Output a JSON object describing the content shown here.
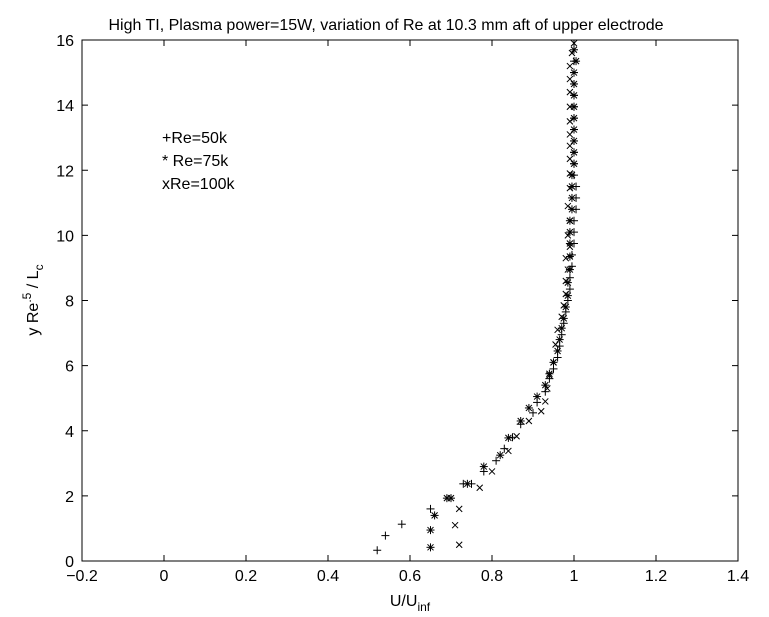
{
  "chart_data": {
    "type": "scatter",
    "title": "High TI, Plasma power=15W, variation of Re at 10.3 mm aft of upper electrode",
    "xlabel": {
      "base": "U/U",
      "sub": "inf"
    },
    "ylabel": {
      "base": "y Re",
      "sup": ".5",
      "mid": " / L",
      "sub": "c"
    },
    "xlim": [
      -0.2,
      1.4
    ],
    "ylim": [
      0,
      16
    ],
    "xticks": [
      "-0.2",
      "0",
      "0.2",
      "0.4",
      "0.6",
      "0.8",
      "1",
      "1.2",
      "1.4"
    ],
    "yticks": [
      "0",
      "2",
      "4",
      "6",
      "8",
      "10",
      "12",
      "14",
      "16"
    ],
    "grid": false,
    "legend_entries": [
      "+Re=50k",
      "* Re=75k",
      "xRe=100k"
    ],
    "series": [
      {
        "marker": "+",
        "points": [
          [
            0.52,
            0.33
          ],
          [
            0.54,
            0.78
          ],
          [
            0.58,
            1.13
          ],
          [
            0.65,
            1.6
          ],
          [
            0.69,
            1.93
          ],
          [
            0.73,
            2.37
          ],
          [
            0.75,
            2.37
          ],
          [
            0.78,
            2.75
          ],
          [
            0.81,
            3.08
          ],
          [
            0.83,
            3.45
          ],
          [
            0.85,
            3.8
          ],
          [
            0.87,
            4.2
          ],
          [
            0.9,
            4.55
          ],
          [
            0.91,
            4.87
          ],
          [
            0.93,
            5.2
          ],
          [
            0.94,
            5.6
          ],
          [
            0.95,
            5.9
          ],
          [
            0.96,
            6.25
          ],
          [
            0.965,
            6.6
          ],
          [
            0.97,
            6.95
          ],
          [
            0.975,
            7.3
          ],
          [
            0.98,
            7.65
          ],
          [
            0.985,
            8.0
          ],
          [
            0.99,
            8.35
          ],
          [
            0.99,
            8.7
          ],
          [
            0.995,
            9.05
          ],
          [
            0.995,
            9.4
          ],
          [
            1.0,
            9.75
          ],
          [
            1.0,
            10.1
          ],
          [
            1.0,
            10.45
          ],
          [
            1.005,
            10.8
          ],
          [
            1.005,
            11.15
          ],
          [
            1.005,
            11.5
          ],
          [
            1.0,
            11.85
          ],
          [
            1.0,
            12.2
          ],
          [
            1.0,
            12.55
          ],
          [
            1.0,
            12.9
          ],
          [
            1.0,
            13.25
          ],
          [
            1.0,
            13.6
          ],
          [
            1.0,
            13.95
          ],
          [
            1.0,
            14.3
          ],
          [
            1.0,
            14.65
          ],
          [
            1.0,
            15.0
          ],
          [
            1.0,
            15.35
          ]
        ]
      },
      {
        "marker": "*",
        "points": [
          [
            0.65,
            0.42
          ],
          [
            0.65,
            0.95
          ],
          [
            0.66,
            1.4
          ],
          [
            0.7,
            1.93
          ],
          [
            0.74,
            2.37
          ],
          [
            0.78,
            2.9
          ],
          [
            0.82,
            3.25
          ],
          [
            0.84,
            3.78
          ],
          [
            0.87,
            4.3
          ],
          [
            0.89,
            4.7
          ],
          [
            0.91,
            5.05
          ],
          [
            0.93,
            5.4
          ],
          [
            0.94,
            5.75
          ],
          [
            0.95,
            6.1
          ],
          [
            0.96,
            6.45
          ],
          [
            0.965,
            6.8
          ],
          [
            0.97,
            7.15
          ],
          [
            0.975,
            7.45
          ],
          [
            0.98,
            7.8
          ],
          [
            0.985,
            8.15
          ],
          [
            0.985,
            8.55
          ],
          [
            0.99,
            8.95
          ],
          [
            0.99,
            9.35
          ],
          [
            0.99,
            9.75
          ],
          [
            0.99,
            10.1
          ],
          [
            0.99,
            10.45
          ],
          [
            0.995,
            10.8
          ],
          [
            0.995,
            11.15
          ],
          [
            0.995,
            11.5
          ],
          [
            0.995,
            11.85
          ],
          [
            1.0,
            12.2
          ],
          [
            1.0,
            12.55
          ],
          [
            1.0,
            12.9
          ],
          [
            1.0,
            13.25
          ],
          [
            1.0,
            13.6
          ],
          [
            1.0,
            13.95
          ],
          [
            1.0,
            14.3
          ],
          [
            1.0,
            14.65
          ],
          [
            1.0,
            15.0
          ],
          [
            1.005,
            15.35
          ],
          [
            1.0,
            15.7
          ]
        ]
      },
      {
        "marker": "x",
        "points": [
          [
            0.72,
            0.5
          ],
          [
            0.71,
            1.1
          ],
          [
            0.72,
            1.6
          ],
          [
            0.69,
            1.93
          ],
          [
            0.77,
            2.25
          ],
          [
            0.8,
            2.75
          ],
          [
            0.84,
            3.38
          ],
          [
            0.86,
            3.83
          ],
          [
            0.89,
            4.3
          ],
          [
            0.92,
            4.6
          ],
          [
            0.93,
            4.9
          ],
          [
            0.935,
            5.3
          ],
          [
            0.94,
            5.7
          ],
          [
            0.95,
            6.1
          ],
          [
            0.955,
            6.65
          ],
          [
            0.96,
            7.1
          ],
          [
            0.97,
            7.5
          ],
          [
            0.975,
            7.85
          ],
          [
            0.98,
            8.2
          ],
          [
            0.98,
            8.6
          ],
          [
            0.985,
            8.95
          ],
          [
            0.98,
            9.3
          ],
          [
            0.99,
            9.65
          ],
          [
            0.985,
            10.0
          ],
          [
            0.99,
            10.45
          ],
          [
            0.985,
            10.9
          ],
          [
            0.99,
            11.45
          ],
          [
            0.99,
            11.9
          ],
          [
            0.99,
            12.35
          ],
          [
            0.99,
            12.75
          ],
          [
            0.99,
            13.1
          ],
          [
            0.99,
            13.5
          ],
          [
            0.99,
            13.95
          ],
          [
            0.99,
            14.4
          ],
          [
            0.99,
            14.8
          ],
          [
            0.99,
            15.2
          ],
          [
            0.995,
            15.6
          ],
          [
            1.0,
            15.9
          ]
        ]
      }
    ]
  }
}
